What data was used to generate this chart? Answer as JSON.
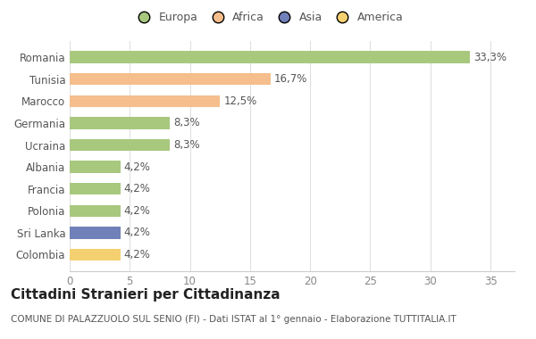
{
  "categories": [
    "Romania",
    "Tunisia",
    "Marocco",
    "Germania",
    "Ucraina",
    "Albania",
    "Francia",
    "Polonia",
    "Sri Lanka",
    "Colombia"
  ],
  "values": [
    33.3,
    16.7,
    12.5,
    8.3,
    8.3,
    4.2,
    4.2,
    4.2,
    4.2,
    4.2
  ],
  "labels": [
    "33,3%",
    "16,7%",
    "12,5%",
    "8,3%",
    "8,3%",
    "4,2%",
    "4,2%",
    "4,2%",
    "4,2%",
    "4,2%"
  ],
  "colors": [
    "#a8c87e",
    "#f5be8c",
    "#f5be8c",
    "#a8c87e",
    "#a8c87e",
    "#a8c87e",
    "#a8c87e",
    "#a8c87e",
    "#7080b8",
    "#f5d070"
  ],
  "legend": {
    "labels": [
      "Europa",
      "Africa",
      "Asia",
      "America"
    ],
    "colors": [
      "#a8c87e",
      "#f5be8c",
      "#7080b8",
      "#f5d070"
    ]
  },
  "xlim": [
    0,
    37
  ],
  "xticks": [
    0,
    5,
    10,
    15,
    20,
    25,
    30,
    35
  ],
  "title": "Cittadini Stranieri per Cittadinanza",
  "subtitle": "COMUNE DI PALAZZUOLO SUL SENIO (FI) - Dati ISTAT al 1° gennaio - Elaborazione TUTTITALIA.IT",
  "background_color": "#ffffff",
  "grid_color": "#e0e0e0",
  "bar_height": 0.55,
  "label_fontsize": 8.5,
  "tick_fontsize": 8.5,
  "title_fontsize": 11,
  "subtitle_fontsize": 7.5,
  "legend_fontsize": 9
}
